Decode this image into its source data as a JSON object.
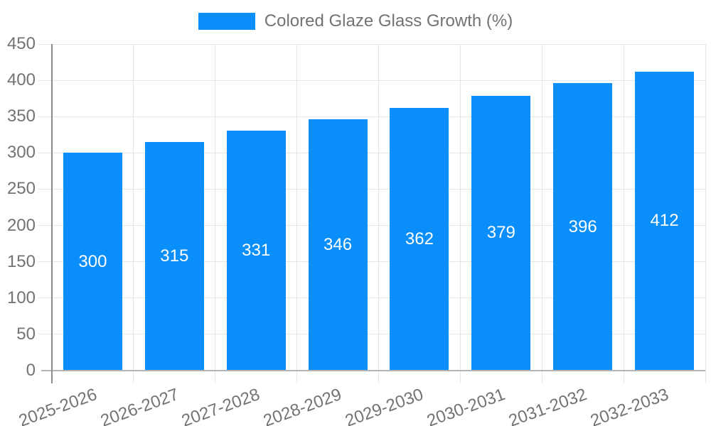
{
  "legend": {
    "label": "Colored Glaze Glass Growth (%)"
  },
  "chart_data": {
    "type": "bar",
    "title": "",
    "categories": [
      "2025-2026",
      "2026-2027",
      "2027-2028",
      "2028-2029",
      "2029-2030",
      "2030-2031",
      "2031-2032",
      "2032-2033"
    ],
    "series": [
      {
        "name": "Colored Glaze Glass Growth (%)",
        "values": [
          300,
          315,
          331,
          346,
          362,
          379,
          396,
          412
        ],
        "color": "#0a8ef9"
      }
    ],
    "value_labels_shown": true,
    "value_label_color": "#ffffff",
    "xlabel": "",
    "ylabel": "",
    "ylim": [
      0,
      450
    ],
    "yticks": [
      0,
      50,
      100,
      150,
      200,
      250,
      300,
      350,
      400,
      450
    ],
    "grid": "on",
    "legend_position": "top",
    "x_label_rotation_deg": -20
  },
  "colors": {
    "bar": "#0a8ef9",
    "grid_line": "#e6e6e6",
    "x_axis_line": "#b3b3b3",
    "y_axis_line": "#8c8c8c",
    "axis_text": "#737373",
    "background": "#ffffff"
  }
}
